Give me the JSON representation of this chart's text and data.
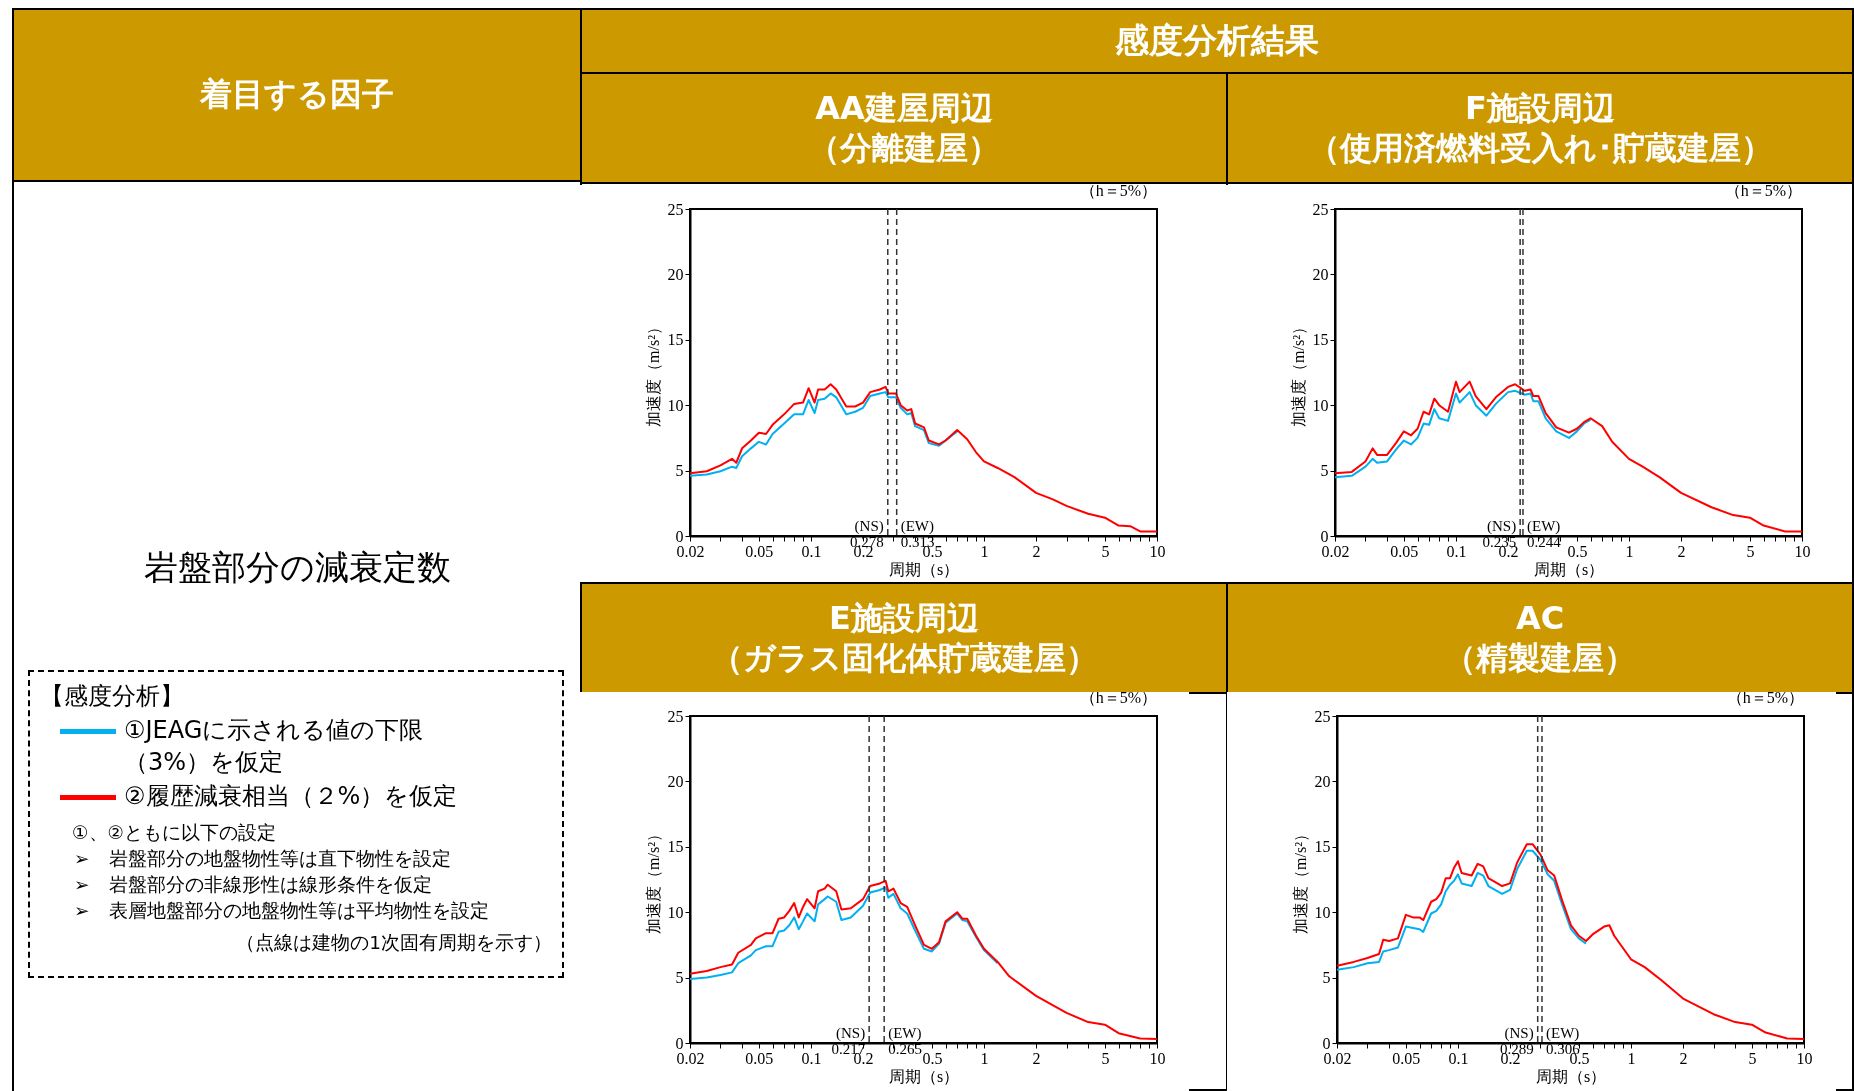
{
  "chart_data": [
    {
      "type": "other",
      "title": "着目する因子",
      "annotations": [
        "感度分析結果",
        "岩盤部分の減衰定数",
        "【感度分析】",
        "①、②ともに以下の設定",
        "➢　岩盤部分の地盤物性等は直下物性を設定",
        "➢　岩盤部分の非線形性は線形条件を仮定",
        "➢　表層地盤部分の地盤物性等は平均物性を設定",
        "（点線は建物の1次固有周期を示す）"
      ]
    },
    {
      "type": "line",
      "title": "AA建屋周辺（分離建屋）",
      "xlabel": "周期（s）",
      "ylabel": "加速度（m/s²）",
      "annotations": [
        "（h＝5%）"
      ],
      "log": "x",
      "legend": "left",
      "xlim": [
        0.02,
        10
      ],
      "ylim": [
        0,
        25
      ],
      "xticks": [
        0.02,
        {
          "value": 0.03,
          "label": null
        },
        {
          "value": 0.04,
          "label": null
        },
        0.05,
        {
          "value": 0.06,
          "label": null
        },
        {
          "value": 0.07,
          "label": null
        },
        {
          "value": 0.08,
          "label": null
        },
        {
          "value": 0.09,
          "label": null
        },
        0.1,
        0.2,
        {
          "value": 0.3,
          "label": null
        },
        {
          "value": 0.4,
          "label": null
        },
        0.5,
        {
          "value": 0.6,
          "label": null
        },
        {
          "value": 0.7,
          "label": null
        },
        {
          "value": 0.8,
          "label": null
        },
        {
          "value": 0.9,
          "label": null
        },
        1,
        2,
        {
          "value": 3,
          "label": null
        },
        {
          "value": 4,
          "label": null
        },
        5,
        {
          "value": 6,
          "label": null
        },
        {
          "value": 7,
          "label": null
        },
        {
          "value": 8,
          "label": null
        },
        {
          "value": 9,
          "label": null
        },
        10
      ],
      "yticks": [
        0,
        5,
        10,
        15,
        20,
        25
      ],
      "ref_lines": [
        {
          "axis": "x",
          "value": 0.278,
          "label": "(NS)\n0.278",
          "color": "#333333",
          "line_style": "dashed"
        },
        {
          "axis": "x",
          "value": 0.313,
          "label": "(EW)\n0.313",
          "color": "#333333",
          "line_style": "dashed"
        }
      ],
      "x": [
        0.02,
        0.025,
        0.03,
        0.035,
        0.037,
        0.04,
        0.045,
        0.05,
        0.055,
        0.06,
        0.07,
        0.08,
        0.09,
        0.097,
        0.105,
        0.11,
        0.12,
        0.13,
        0.14,
        0.16,
        0.18,
        0.2,
        0.22,
        0.25,
        0.27,
        0.28,
        0.31,
        0.33,
        0.36,
        0.38,
        0.4,
        0.45,
        0.48,
        0.55,
        0.6,
        0.7,
        0.8,
        0.9,
        1,
        1.2,
        1.5,
        2,
        2.5,
        3,
        4,
        5,
        6,
        7,
        8,
        10
      ],
      "series": [
        {
          "name": "①JEAGに示される値の下限（3%）を仮定",
          "color": "#00b0f0",
          "values": [
            4.6,
            4.7,
            4.95,
            5.3,
            5.2,
            6.1,
            6.7,
            7.2,
            7.0,
            7.8,
            8.6,
            9.3,
            9.3,
            10.4,
            9.4,
            10.4,
            10.5,
            10.9,
            10.6,
            9.3,
            9.5,
            9.8,
            10.7,
            10.9,
            11.0,
            10.6,
            10.6,
            9.8,
            9.3,
            9.4,
            8.4,
            8.1,
            7.1,
            6.9,
            7.3,
            8.0,
            null,
            null,
            null,
            null,
            null,
            null,
            null,
            null,
            null,
            null,
            null,
            null,
            null,
            null
          ]
        },
        {
          "name": "②履歴減衰相当（２%）を仮定",
          "color": "#ff0000",
          "values": [
            4.8,
            4.95,
            5.4,
            5.9,
            5.6,
            6.7,
            7.3,
            7.9,
            7.8,
            8.5,
            9.3,
            10.1,
            10.2,
            11.3,
            10.2,
            11.2,
            11.2,
            11.6,
            11.2,
            9.9,
            9.9,
            10.2,
            11.0,
            11.2,
            11.4,
            10.9,
            10.9,
            10.0,
            9.6,
            9.7,
            8.6,
            8.3,
            7.3,
            7.0,
            7.3,
            8.1,
            7.4,
            6.4,
            5.7,
            5.2,
            4.5,
            3.3,
            2.8,
            2.3,
            1.7,
            1.4,
            0.8,
            0.75,
            0.35,
            0.35
          ]
        }
      ]
    },
    {
      "type": "line",
      "title": "F施設周辺（使用済燃料受入れ･貯蔵建屋）",
      "xlabel": "周期（s）",
      "ylabel": "加速度（m/s²）",
      "annotations": [
        "（h＝5%）"
      ],
      "log": "x",
      "xlim": [
        0.02,
        10
      ],
      "ylim": [
        0,
        25
      ],
      "xticks": [
        0.02,
        {
          "value": 0.03,
          "label": null
        },
        {
          "value": 0.04,
          "label": null
        },
        0.05,
        {
          "value": 0.06,
          "label": null
        },
        {
          "value": 0.07,
          "label": null
        },
        {
          "value": 0.08,
          "label": null
        },
        {
          "value": 0.09,
          "label": null
        },
        0.1,
        0.2,
        {
          "value": 0.3,
          "label": null
        },
        {
          "value": 0.4,
          "label": null
        },
        0.5,
        {
          "value": 0.6,
          "label": null
        },
        {
          "value": 0.7,
          "label": null
        },
        {
          "value": 0.8,
          "label": null
        },
        {
          "value": 0.9,
          "label": null
        },
        1,
        2,
        {
          "value": 3,
          "label": null
        },
        {
          "value": 4,
          "label": null
        },
        5,
        {
          "value": 6,
          "label": null
        },
        {
          "value": 7,
          "label": null
        },
        {
          "value": 8,
          "label": null
        },
        {
          "value": 9,
          "label": null
        },
        10
      ],
      "yticks": [
        0,
        5,
        10,
        15,
        20,
        25
      ],
      "ref_lines": [
        {
          "axis": "x",
          "value": 0.235,
          "label": "(NS)\n0.235",
          "color": "#333333",
          "line_style": "dashed"
        },
        {
          "axis": "x",
          "value": 0.244,
          "label": "(EW)\n0.244",
          "color": "#333333",
          "line_style": "dashed"
        }
      ],
      "x": [
        0.02,
        0.025,
        0.03,
        0.033,
        0.035,
        0.04,
        0.045,
        0.05,
        0.055,
        0.06,
        0.065,
        0.07,
        0.075,
        0.08,
        0.09,
        0.1,
        0.105,
        0.12,
        0.13,
        0.15,
        0.17,
        0.2,
        0.22,
        0.25,
        0.27,
        0.28,
        0.3,
        0.33,
        0.38,
        0.45,
        0.5,
        0.55,
        0.6,
        0.7,
        0.8,
        1,
        1.2,
        1.5,
        2,
        3,
        4,
        5,
        6,
        8,
        10
      ],
      "series": [
        {
          "color": "#00b0f0",
          "values": [
            4.5,
            4.6,
            5.3,
            5.9,
            5.6,
            5.7,
            6.6,
            7.3,
            7.0,
            7.5,
            8.6,
            8.5,
            9.7,
            9.0,
            8.8,
            10.9,
            10.2,
            11.0,
            10.0,
            9.2,
            10.1,
            11.0,
            11.1,
            10.8,
            10.9,
            10.3,
            10.3,
            9.0,
            8.0,
            7.5,
            8.0,
            8.6,
            8.9,
            null,
            null,
            null,
            null,
            null,
            null,
            null,
            null,
            null,
            null,
            null,
            null
          ]
        },
        {
          "color": "#ff0000",
          "values": [
            4.8,
            4.9,
            5.7,
            6.7,
            6.2,
            6.2,
            7.1,
            8.0,
            7.7,
            8.2,
            9.5,
            9.3,
            10.5,
            10.0,
            9.5,
            11.8,
            11.0,
            11.8,
            10.7,
            9.7,
            10.6,
            11.4,
            11.6,
            11.1,
            11.2,
            10.7,
            10.7,
            9.4,
            8.3,
            7.9,
            8.2,
            8.7,
            9.0,
            8.4,
            7.2,
            5.9,
            5.3,
            4.5,
            3.3,
            2.2,
            1.6,
            1.4,
            0.8,
            0.35,
            0.35
          ]
        }
      ]
    },
    {
      "type": "line",
      "title": "E施設周辺（ガラス固化体貯蔵建屋）",
      "xlabel": "周期（s）",
      "ylabel": "加速度（m/s²）",
      "annotations": [
        "（h＝5%）"
      ],
      "log": "x",
      "xlim": [
        0.02,
        10
      ],
      "ylim": [
        0,
        25
      ],
      "xticks": [
        0.02,
        {
          "value": 0.03,
          "label": null
        },
        {
          "value": 0.04,
          "label": null
        },
        0.05,
        {
          "value": 0.06,
          "label": null
        },
        {
          "value": 0.07,
          "label": null
        },
        {
          "value": 0.08,
          "label": null
        },
        {
          "value": 0.09,
          "label": null
        },
        0.1,
        0.2,
        {
          "value": 0.3,
          "label": null
        },
        {
          "value": 0.4,
          "label": null
        },
        0.5,
        {
          "value": 0.6,
          "label": null
        },
        {
          "value": 0.7,
          "label": null
        },
        {
          "value": 0.8,
          "label": null
        },
        {
          "value": 0.9,
          "label": null
        },
        1,
        2,
        {
          "value": 3,
          "label": null
        },
        {
          "value": 4,
          "label": null
        },
        5,
        {
          "value": 6,
          "label": null
        },
        {
          "value": 7,
          "label": null
        },
        {
          "value": 8,
          "label": null
        },
        {
          "value": 9,
          "label": null
        },
        10
      ],
      "yticks": [
        0,
        5,
        10,
        15,
        20,
        25
      ],
      "ref_lines": [
        {
          "axis": "x",
          "value": 0.217,
          "label": "(NS)\n0.217",
          "color": "#333333",
          "line_style": "dashed"
        },
        {
          "axis": "x",
          "value": 0.265,
          "label": "(EW)\n0.265",
          "color": "#333333",
          "line_style": "dashed"
        }
      ],
      "x": [
        0.02,
        0.025,
        0.03,
        0.035,
        0.038,
        0.045,
        0.048,
        0.055,
        0.06,
        0.065,
        0.07,
        0.075,
        0.08,
        0.085,
        0.09,
        0.095,
        0.105,
        0.11,
        0.12,
        0.125,
        0.14,
        0.15,
        0.17,
        0.2,
        0.22,
        0.25,
        0.27,
        0.28,
        0.3,
        0.33,
        0.36,
        0.4,
        0.45,
        0.5,
        0.55,
        0.6,
        0.7,
        0.75,
        0.8,
        0.9,
        1,
        1.2,
        1.4,
        2,
        3,
        4,
        5,
        6,
        8,
        10
      ],
      "series": [
        {
          "color": "#00b0f0",
          "values": [
            4.9,
            5.0,
            5.2,
            5.4,
            6.1,
            6.7,
            7.1,
            7.4,
            7.4,
            8.5,
            8.6,
            9.0,
            9.6,
            8.7,
            9.3,
            9.9,
            9.3,
            10.6,
            11.0,
            11.2,
            10.8,
            9.4,
            9.6,
            10.5,
            11.5,
            11.7,
            11.9,
            11.1,
            11.4,
            10.3,
            9.9,
            8.6,
            7.2,
            7.0,
            7.6,
            9.2,
            9.9,
            9.4,
            9.3,
            8.1,
            7.1,
            6.1,
            null,
            null,
            null,
            null,
            null,
            null,
            null,
            null
          ]
        },
        {
          "color": "#ff0000",
          "values": [
            5.3,
            5.5,
            5.8,
            6.0,
            6.9,
            7.5,
            8.0,
            8.4,
            8.4,
            9.5,
            9.6,
            10.1,
            10.7,
            9.6,
            10.4,
            11.0,
            10.3,
            11.6,
            11.8,
            12.1,
            11.6,
            10.2,
            10.3,
            11.0,
            12.0,
            12.2,
            12.4,
            11.6,
            11.8,
            10.7,
            10.4,
            9.0,
            7.5,
            7.2,
            7.7,
            9.3,
            10.0,
            9.5,
            9.5,
            8.2,
            7.2,
            6.2,
            5.1,
            3.6,
            2.3,
            1.6,
            1.4,
            0.75,
            0.35,
            0.3
          ]
        }
      ]
    },
    {
      "type": "line",
      "title": "AC（精製建屋）",
      "xlabel": "周期（s）",
      "ylabel": "加速度（m/s²）",
      "annotations": [
        "（h＝5%）"
      ],
      "log": "x",
      "xlim": [
        0.02,
        10
      ],
      "ylim": [
        0,
        25
      ],
      "xticks": [
        0.02,
        {
          "value": 0.03,
          "label": null
        },
        {
          "value": 0.04,
          "label": null
        },
        0.05,
        {
          "value": 0.06,
          "label": null
        },
        {
          "value": 0.07,
          "label": null
        },
        {
          "value": 0.08,
          "label": null
        },
        {
          "value": 0.09,
          "label": null
        },
        0.1,
        0.2,
        {
          "value": 0.3,
          "label": null
        },
        {
          "value": 0.4,
          "label": null
        },
        0.5,
        {
          "value": 0.6,
          "label": null
        },
        {
          "value": 0.7,
          "label": null
        },
        {
          "value": 0.8,
          "label": null
        },
        {
          "value": 0.9,
          "label": null
        },
        1,
        2,
        {
          "value": 3,
          "label": null
        },
        {
          "value": 4,
          "label": null
        },
        5,
        {
          "value": 6,
          "label": null
        },
        {
          "value": 7,
          "label": null
        },
        {
          "value": 8,
          "label": null
        },
        {
          "value": 9,
          "label": null
        },
        10
      ],
      "yticks": [
        0,
        5,
        10,
        15,
        20,
        25
      ],
      "ref_lines": [
        {
          "axis": "x",
          "value": 0.289,
          "label": "(NS)\n0.289",
          "color": "#333333",
          "line_style": "dashed"
        },
        {
          "axis": "x",
          "value": 0.306,
          "label": "(EW)\n0.306",
          "color": "#333333",
          "line_style": "dashed"
        }
      ],
      "x": [
        0.02,
        0.025,
        0.03,
        0.035,
        0.037,
        0.04,
        0.045,
        0.05,
        0.055,
        0.06,
        0.063,
        0.07,
        0.075,
        0.08,
        0.085,
        0.09,
        0.095,
        0.1,
        0.105,
        0.12,
        0.13,
        0.14,
        0.15,
        0.18,
        0.2,
        0.22,
        0.25,
        0.27,
        0.3,
        0.33,
        0.36,
        0.4,
        0.45,
        0.5,
        0.55,
        0.6,
        0.7,
        0.75,
        0.8,
        1,
        1.2,
        1.5,
        2,
        3,
        4,
        5,
        6,
        8,
        10
      ],
      "series": [
        {
          "color": "#00b0f0",
          "values": [
            5.6,
            5.8,
            6.1,
            6.2,
            7.0,
            7.1,
            7.3,
            8.9,
            8.8,
            8.7,
            8.5,
            9.9,
            10.1,
            10.6,
            11.6,
            12.1,
            12.4,
            12.9,
            12.2,
            12.0,
            13.0,
            12.8,
            12.0,
            11.4,
            11.7,
            13.3,
            14.7,
            14.7,
            14.0,
            12.9,
            12.4,
            10.6,
            8.7,
            8.0,
            7.6,
            null,
            null,
            null,
            null,
            null,
            null,
            null,
            null,
            null,
            null,
            null,
            null,
            null,
            null
          ]
        },
        {
          "color": "#ff0000",
          "values": [
            5.9,
            6.2,
            6.5,
            6.8,
            7.9,
            7.8,
            8.0,
            9.8,
            9.6,
            9.6,
            9.4,
            10.8,
            11.0,
            11.5,
            12.6,
            12.6,
            13.4,
            13.9,
            13.0,
            12.8,
            13.7,
            13.5,
            12.6,
            12.0,
            12.2,
            13.8,
            15.2,
            15.2,
            14.4,
            13.2,
            12.8,
            10.9,
            9.0,
            8.2,
            7.8,
            8.3,
            8.9,
            9.0,
            8.2,
            6.4,
            5.8,
            4.8,
            3.4,
            2.2,
            1.6,
            1.4,
            0.8,
            0.35,
            0.3
          ]
        }
      ]
    }
  ]
}
